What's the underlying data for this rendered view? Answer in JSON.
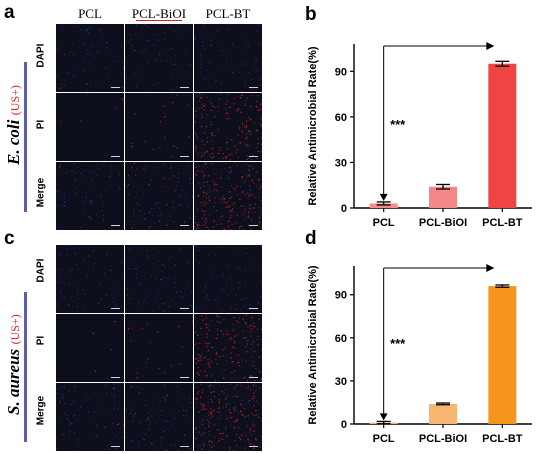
{
  "panel_letters": {
    "a": "a",
    "b": "b",
    "c": "c",
    "d": "d"
  },
  "column_headers": [
    "PCL",
    "PCL-BiOI",
    "PCL-BT"
  ],
  "row_headers": [
    "DAPI",
    "PI",
    "Merge"
  ],
  "species_top": {
    "name": "E. coli",
    "condition": "(US+)"
  },
  "species_bottom": {
    "name": "S. aureus",
    "condition": "(US+)"
  },
  "significance": "***",
  "colors": {
    "tile_background": "#0d0f1c",
    "dapi_dots": "#3a4fd0",
    "pi_dots": "#d02828",
    "chart_b_bars": [
      "#f58d8d",
      "#f48888",
      "#f04343"
    ],
    "chart_d_bars": [
      "#f7b77a",
      "#f7b56e",
      "#f7941d"
    ],
    "species_bar": "#5a5fa8",
    "us_label": "#d62323"
  },
  "chart_data": [
    {
      "type": "bar",
      "panel": "b",
      "categories": [
        "PCL",
        "PCL-BiOI",
        "PCL-BT"
      ],
      "values": [
        3,
        14,
        95
      ],
      "errors": [
        1.0,
        1.5,
        1.6
      ],
      "ylabel": "Relative Antimicrobial Rate(%)",
      "xlabel": "",
      "ylim": [
        0,
        108
      ],
      "yticks": [
        0,
        30,
        60,
        90
      ],
      "grid": false,
      "annotation": "***"
    },
    {
      "type": "bar",
      "panel": "d",
      "categories": [
        "PCL",
        "PCL-BiOI",
        "PCL-BT"
      ],
      "values": [
        1,
        14,
        96
      ],
      "errors": [
        0.8,
        0.6,
        0.8
      ],
      "ylabel": "Relative Antimicrobial Rate(%)",
      "xlabel": "",
      "ylim": [
        0,
        110
      ],
      "yticks": [
        0,
        30,
        60,
        90
      ],
      "grid": false,
      "annotation": "***"
    }
  ]
}
